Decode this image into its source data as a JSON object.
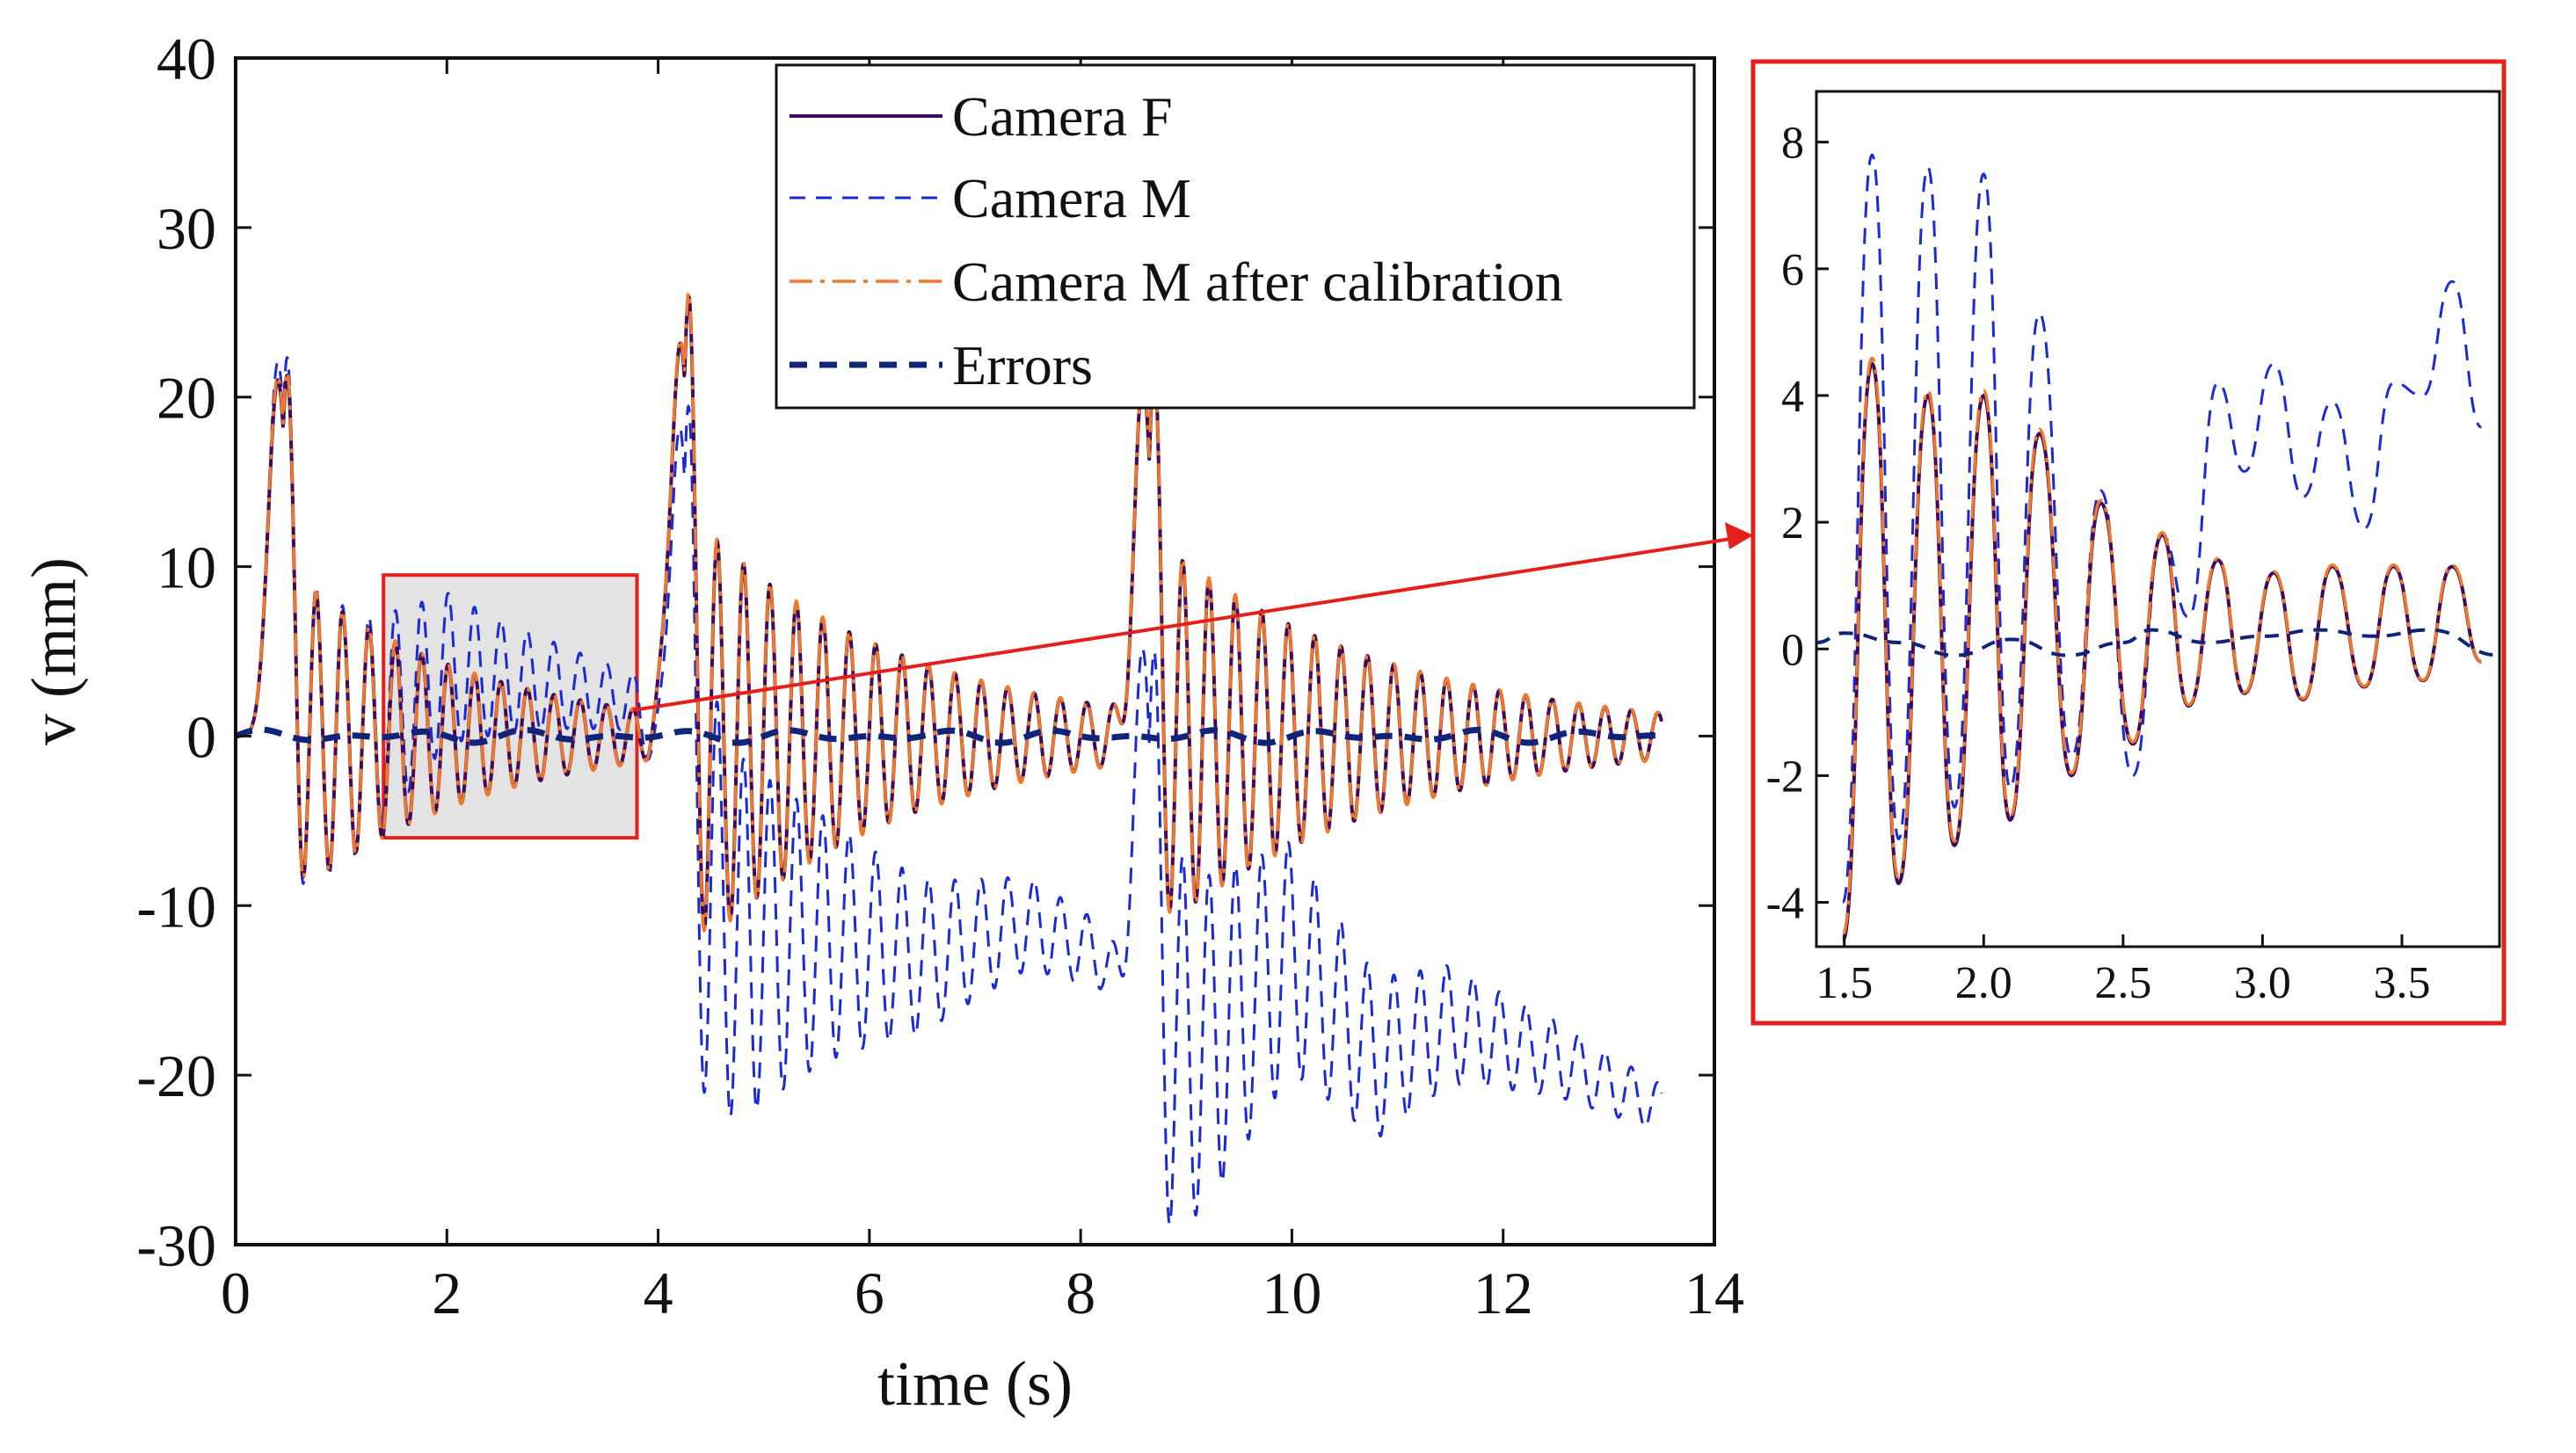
{
  "colors": {
    "camera_f": "#3d0a5c",
    "camera_m": "#1a2bd6",
    "calibrated": "#f0782b",
    "errors": "#10257a",
    "highlight": "#e3201b",
    "highlight_fill": "#e3e3e3"
  },
  "chart_data": [
    {
      "id": "main",
      "type": "line",
      "xlabel": "time (s)",
      "ylabel": "v (mm)",
      "xlim": [
        0,
        14
      ],
      "ylim": [
        -30,
        40
      ],
      "xticks": [
        0,
        2,
        4,
        6,
        8,
        10,
        12,
        14
      ],
      "yticks": [
        -30,
        -20,
        -10,
        0,
        10,
        20,
        30,
        40
      ],
      "xtick_labels": [
        "0",
        "2",
        "4",
        "6",
        "8",
        "10",
        "12",
        "14"
      ],
      "ytick_labels": [
        "-30",
        "-20",
        "-10",
        "0",
        "10",
        "20",
        "30",
        "40"
      ],
      "legend_position": "top-right",
      "legend": [
        {
          "key": "camera_f",
          "label": "Camera F",
          "style": "solid"
        },
        {
          "key": "camera_m",
          "label": "Camera M",
          "style": "dashed"
        },
        {
          "key": "calibrated",
          "label": "Camera M after calibration",
          "style": "dash-dot"
        },
        {
          "key": "errors",
          "label": "Errors",
          "style": "thick-dashed"
        }
      ],
      "zoom_region": {
        "x": [
          1.4,
          3.8
        ],
        "y": [
          -6,
          9.5
        ]
      },
      "excitations": [
        {
          "t0": 0.0,
          "peak": 21,
          "ringdown_amp": 10,
          "decay": 0.55
        },
        {
          "t0": 3.8,
          "peak": 23,
          "ringdown_amp": 13,
          "decay": 0.5
        },
        {
          "t0": 8.2,
          "peak": 20,
          "ringdown_amp": 13,
          "decay": 0.45
        }
      ],
      "oscillation_frequency_hz": 4.0,
      "camera_m_drift": {
        "t": [
          0,
          1.2,
          2.0,
          3.0,
          3.8,
          4.3,
          4.8,
          5.6,
          6.5,
          7.5,
          8.2,
          8.7,
          9.2,
          10.0,
          10.8,
          11.5,
          12.5,
          13.5
        ],
        "v": [
          0,
          0,
          4,
          3,
          2,
          -8,
          -12,
          -12,
          -13,
          -11,
          -13,
          -18,
          -18,
          -13,
          -19,
          -17,
          -19,
          -22
        ]
      },
      "errors_peak": 0.4
    },
    {
      "id": "inset",
      "type": "line",
      "xlim": [
        1.4,
        3.85
      ],
      "ylim": [
        -4.7,
        8.8
      ],
      "xticks": [
        1.5,
        2.0,
        2.5,
        3.0,
        3.5
      ],
      "yticks": [
        -4,
        -2,
        0,
        2,
        4,
        6,
        8
      ],
      "xtick_labels": [
        "1.5",
        "2.0",
        "2.5",
        "3.0",
        "3.5"
      ],
      "ytick_labels": [
        "-4",
        "-2",
        "0",
        "2",
        "4",
        "6",
        "8"
      ],
      "peak_times": [
        1.6,
        1.8,
        2.0,
        2.2,
        2.42,
        2.64,
        2.84,
        3.04,
        3.25,
        3.47,
        3.68
      ],
      "camera_f_peaks": [
        4.5,
        4.0,
        4.0,
        3.4,
        2.3,
        1.8,
        1.4,
        1.2,
        1.3,
        1.3,
        1.3
      ],
      "camera_f_troughs": [
        -4.6,
        -3.7,
        -3.1,
        -2.7,
        -2.0,
        -1.5,
        -0.9,
        -0.7,
        -0.8,
        -0.6,
        -0.5,
        -0.2
      ],
      "camera_m_peaks": [
        7.8,
        7.6,
        7.5,
        5.3,
        2.5,
        1.8,
        4.2,
        4.5,
        3.9,
        4.2,
        5.8
      ],
      "camera_m_troughs": [
        -4.0,
        -3.0,
        -2.5,
        -2.2,
        -1.7,
        -2.0,
        0.5,
        2.8,
        2.4,
        1.9,
        4.0,
        3.5
      ],
      "errors_points": {
        "t": [
          1.4,
          1.5,
          1.7,
          1.9,
          2.1,
          2.3,
          2.5,
          2.6,
          2.8,
          3.0,
          3.2,
          3.4,
          3.6,
          3.85
        ],
        "v": [
          0.1,
          0.25,
          0.1,
          -0.1,
          0.15,
          -0.1,
          0.1,
          0.3,
          0.1,
          0.2,
          0.3,
          0.2,
          0.3,
          -0.1
        ]
      }
    }
  ]
}
